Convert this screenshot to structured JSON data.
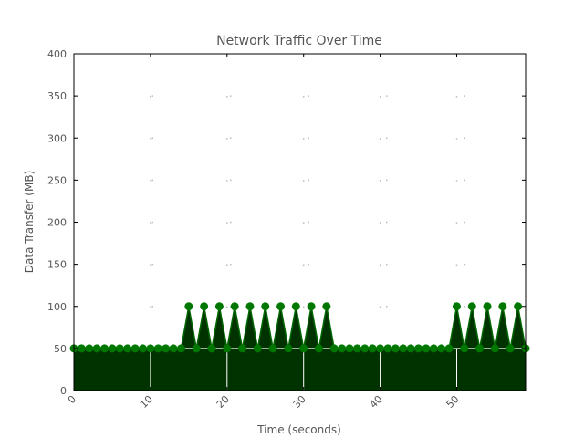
{
  "chart_data": {
    "type": "area",
    "title": "Network Traffic Over Time",
    "xlabel": "Time (seconds)",
    "ylabel": "Data Transfer (MB)",
    "xlim": [
      0,
      59
    ],
    "ylim": [
      0,
      400
    ],
    "xticks": [
      0,
      10,
      20,
      30,
      40,
      50
    ],
    "yticks": [
      0,
      50,
      100,
      150,
      200,
      250,
      300,
      350,
      400
    ],
    "grid": true,
    "legend": "none",
    "colors": {
      "fill": "#003300",
      "line": "#006600",
      "marker": "#007700",
      "grid": "#bbbbbb"
    },
    "series": [
      {
        "x": [
          0,
          1,
          2,
          3,
          4,
          5,
          6,
          7,
          8,
          9,
          10,
          11,
          12,
          13,
          14,
          15,
          16,
          17,
          18,
          19,
          20,
          21,
          22,
          23,
          24,
          25,
          26,
          27,
          28,
          29,
          30,
          31,
          32,
          33,
          34,
          35,
          36,
          37,
          38,
          39,
          40,
          41,
          42,
          43,
          44,
          45,
          46,
          47,
          48,
          49,
          50,
          51,
          52,
          53,
          54,
          55,
          56,
          57,
          58,
          59
        ],
        "values": [
          50,
          50,
          50,
          50,
          50,
          50,
          50,
          50,
          50,
          50,
          50,
          50,
          50,
          50,
          50,
          100,
          50,
          100,
          50,
          100,
          50,
          100,
          50,
          100,
          50,
          100,
          50,
          100,
          50,
          100,
          50,
          100,
          50,
          100,
          50,
          50,
          50,
          50,
          50,
          50,
          50,
          50,
          50,
          50,
          50,
          50,
          50,
          50,
          50,
          50,
          100,
          50,
          100,
          50,
          100,
          50,
          100,
          50,
          100,
          50
        ]
      }
    ]
  }
}
